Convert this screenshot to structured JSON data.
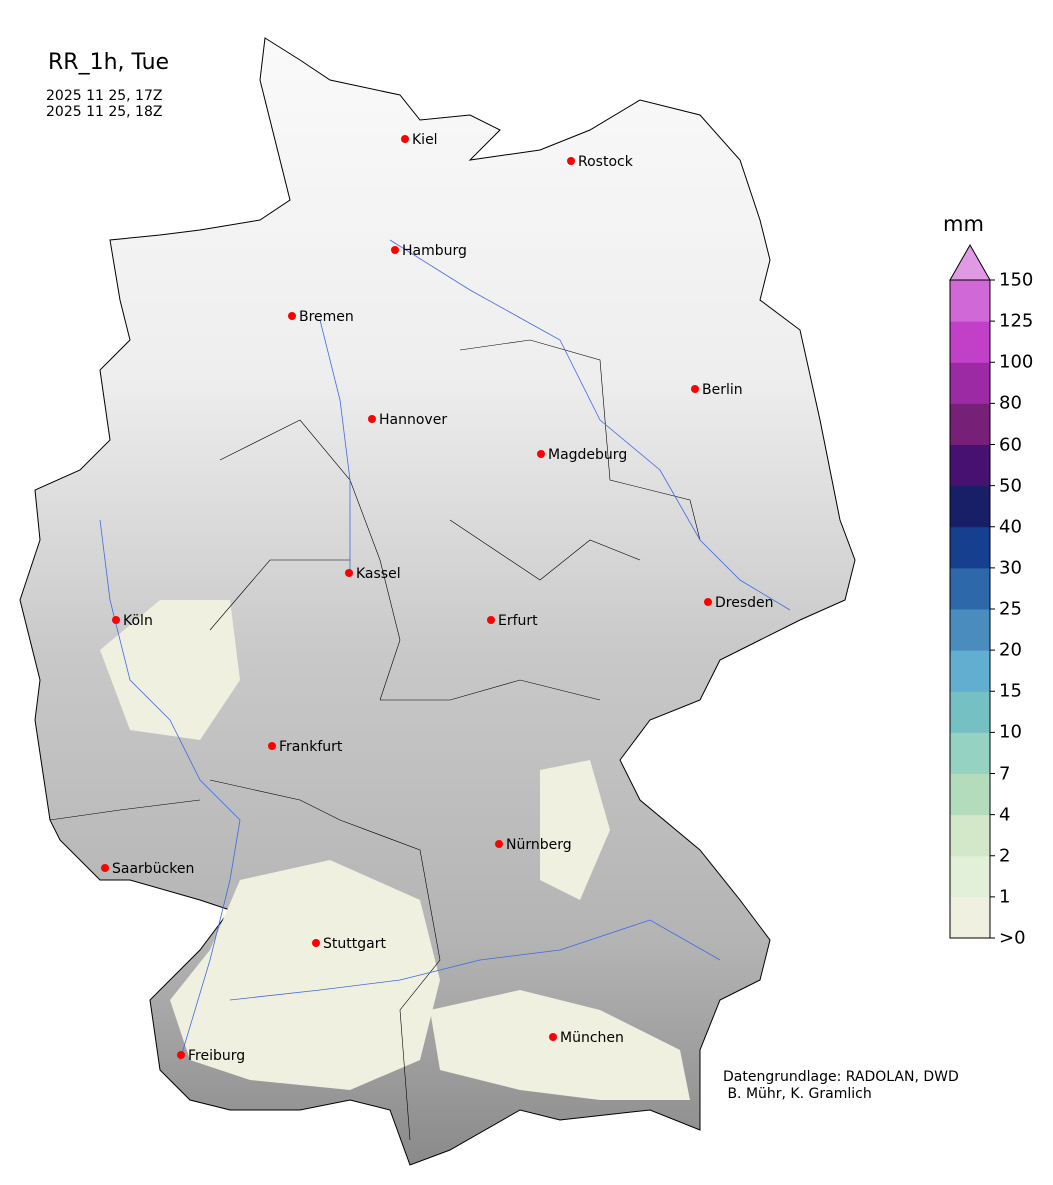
{
  "title": "RR_1h, Tue",
  "times": [
    "2025 11 25, 17Z",
    "2025 11 25, 18Z"
  ],
  "colorbar": {
    "unit": "mm",
    "ticks": [
      ">0",
      "1",
      "2",
      "4",
      "7",
      "10",
      "15",
      "20",
      "25",
      "30",
      "40",
      "50",
      "60",
      "80",
      "100",
      "125",
      "150"
    ],
    "colors": [
      "#f0f0e0",
      "#e3f0d9",
      "#d2e8c8",
      "#b2dcbc",
      "#96d2c2",
      "#75c0c2",
      "#62aed0",
      "#4a8cbd",
      "#2d68aa",
      "#163f90",
      "#181f66",
      "#461170",
      "#762078",
      "#9c2aa4",
      "#c240c8",
      "#d068d8"
    ],
    "extend_color": "#e09ae4"
  },
  "cities": [
    "Kiel",
    "Rostock",
    "Hamburg",
    "Bremen",
    "Berlin",
    "Hannover",
    "Magdeburg",
    "Kassel",
    "Köln",
    "Erfurt",
    "Dresden",
    "Frankfurt",
    "Nürnberg",
    "Saarbücken",
    "Stuttgart",
    "Freiburg",
    "München"
  ],
  "credit": {
    "line1": "Datengrundlage: RADOLAN, DWD",
    "line2": " B. Mühr, K. Gramlich"
  }
}
